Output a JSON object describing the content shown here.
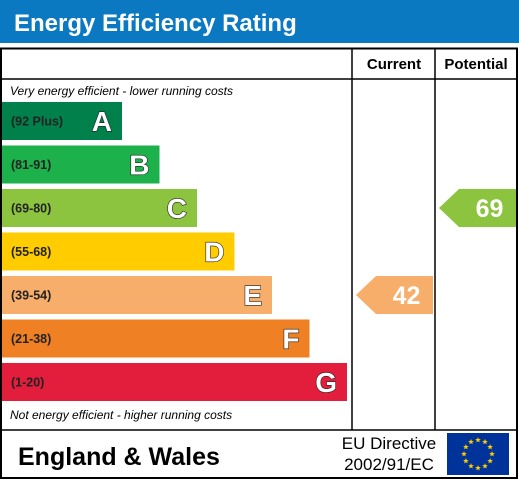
{
  "chart_data": {
    "type": "bar",
    "title": "Energy Efficiency Rating",
    "columns": {
      "current": "Current",
      "potential": "Potential"
    },
    "top_note": "Very energy efficient - lower running costs",
    "bottom_note": "Not energy efficient - higher running costs",
    "bands": [
      {
        "letter": "A",
        "range": "(92 Plus)",
        "color": "#00804a"
      },
      {
        "letter": "B",
        "range": "(81-91)",
        "color": "#1cb14b"
      },
      {
        "letter": "C",
        "range": "(69-80)",
        "color": "#8cc43f"
      },
      {
        "letter": "D",
        "range": "(55-68)",
        "color": "#ffcc00"
      },
      {
        "letter": "E",
        "range": "(39-54)",
        "color": "#f7ae6a"
      },
      {
        "letter": "F",
        "range": "(21-38)",
        "color": "#ef8023"
      },
      {
        "letter": "G",
        "range": "(1-20)",
        "color": "#e31d3c"
      }
    ],
    "current": {
      "value": 42,
      "band": "E",
      "color": "#f7ae6a"
    },
    "potential": {
      "value": 69,
      "band": "C",
      "color": "#8cc43f"
    }
  },
  "footer": {
    "region": "England & Wales",
    "directive_line1": "EU Directive",
    "directive_line2": "2002/91/EC"
  },
  "colors": {
    "header_bg": "#0a79c2",
    "header_text": "#ffffff",
    "eu_flag": "#003399",
    "eu_stars": "#ffcc00"
  }
}
